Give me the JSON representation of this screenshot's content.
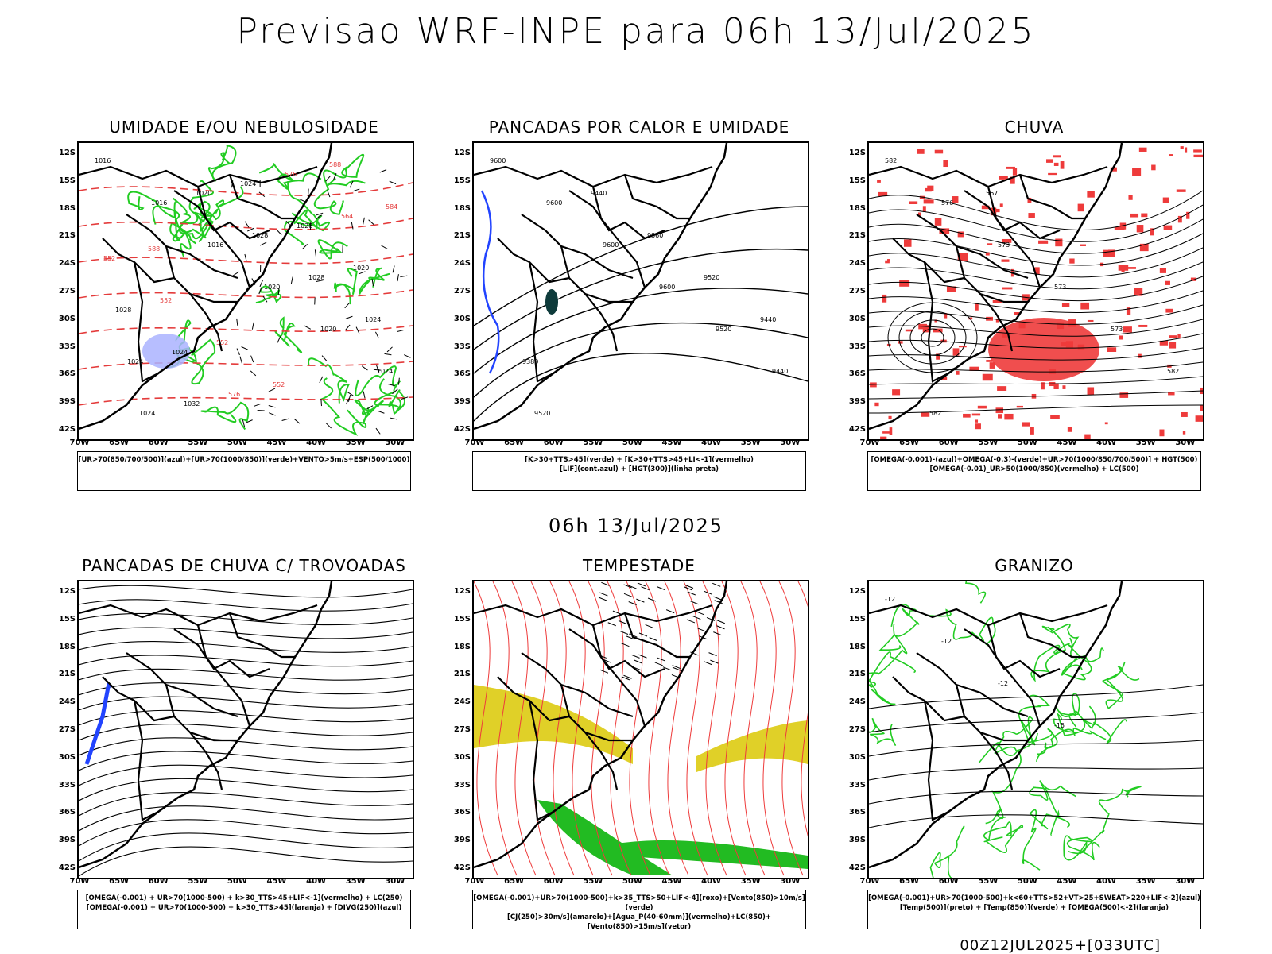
{
  "title": "Previsao WRF-INPE  para 06h 13/Jul/2025",
  "mid_title": "06h 13/Jul/2025",
  "footer": "00Z12JUL2025+[033UTC]",
  "lat_labels": [
    "12S",
    "15S",
    "18S",
    "21S",
    "24S",
    "27S",
    "30S",
    "33S",
    "36S",
    "39S",
    "42S"
  ],
  "lon_labels": [
    "70W",
    "65W",
    "60W",
    "55W",
    "50W",
    "45W",
    "40W",
    "35W",
    "30W"
  ],
  "panels": [
    {
      "title": "UMIDADE E/OU NEBULOSIDADE",
      "legend": [
        "[UR>70(850/700/500)](azul)+[UR>70(1000/850)](verde)+VENTO>5m/s+ESP(500/1000)"
      ],
      "labels": [
        "1016",
        "1016",
        "1016",
        "1020",
        "1020",
        "1024",
        "1024",
        "1020",
        "1028",
        "1028",
        "1024",
        "1024",
        "1032",
        "1024",
        "1028",
        "1020",
        "1028",
        "1024",
        "576",
        "576",
        "564",
        "552",
        "552",
        "552",
        "552",
        "588",
        "584",
        "588"
      ]
    },
    {
      "title": "PANCADAS POR CALOR E UMIDADE",
      "legend": [
        "[K>30+TTS>45](verde) + [K>30+TTS>45+LI<-1](vermelho)",
        "[LIF](cont.azul) + [HGT(300)](linha preta)"
      ],
      "labels": [
        "9600",
        "9600",
        "9600",
        "9600",
        "9520",
        "9440",
        "9520",
        "9440",
        "9360",
        "9520",
        "9440",
        "9380"
      ]
    },
    {
      "title": "CHUVA",
      "legend": [
        "[OMEGA(-0.001)-(azul)+OMEGA(-0.3)-(verde)+UR>70(1000/850/700/500)] + HGT(500)",
        "[OMEGA(-0.01)_UR>50(1000/850)(vermelho) + LC(500)"
      ],
      "labels": [
        "582",
        "576",
        "573",
        "573",
        "573",
        "582",
        "582",
        "567"
      ]
    },
    {
      "title": "PANCADAS DE CHUVA C/ TROVOADAS",
      "legend": [
        "[OMEGA(-0.001) + UR>70(1000-500) + k>30_TTS>45+LIF<-1](vermelho) + LC(250)",
        "[OMEGA(-0.001) + UR>70(1000-500) + k>30_TTS>45](laranja) + [DIVG(250)](azul)"
      ],
      "labels": []
    },
    {
      "title": "TEMPESTADE",
      "legend": [
        "[OMEGA(-0.001)+UR>70(1000-500)+k>35_TTS>50+LIF<-4](roxo)+[Vento(850)>10m/s](verde)",
        "[CJ(250)>30m/s](amarelo)+[Agua_P(40-60mm)](vermelho)+LC(850)+[Vento(850)>15m/s](vetor)"
      ],
      "labels": []
    },
    {
      "title": "GRANIZO",
      "legend": [
        "[OMEGA(-0.001)+UR>70(1000-500)+k<60+TTS>52+VT>25+SWEAT>220+LIF<-2](azul)",
        "[Temp(500)](preto) + [Temp(850)](verde) + [OMEGA(500)<-2](laranja)"
      ],
      "labels": [
        "-12",
        "-12",
        "-12",
        "-15"
      ]
    }
  ]
}
